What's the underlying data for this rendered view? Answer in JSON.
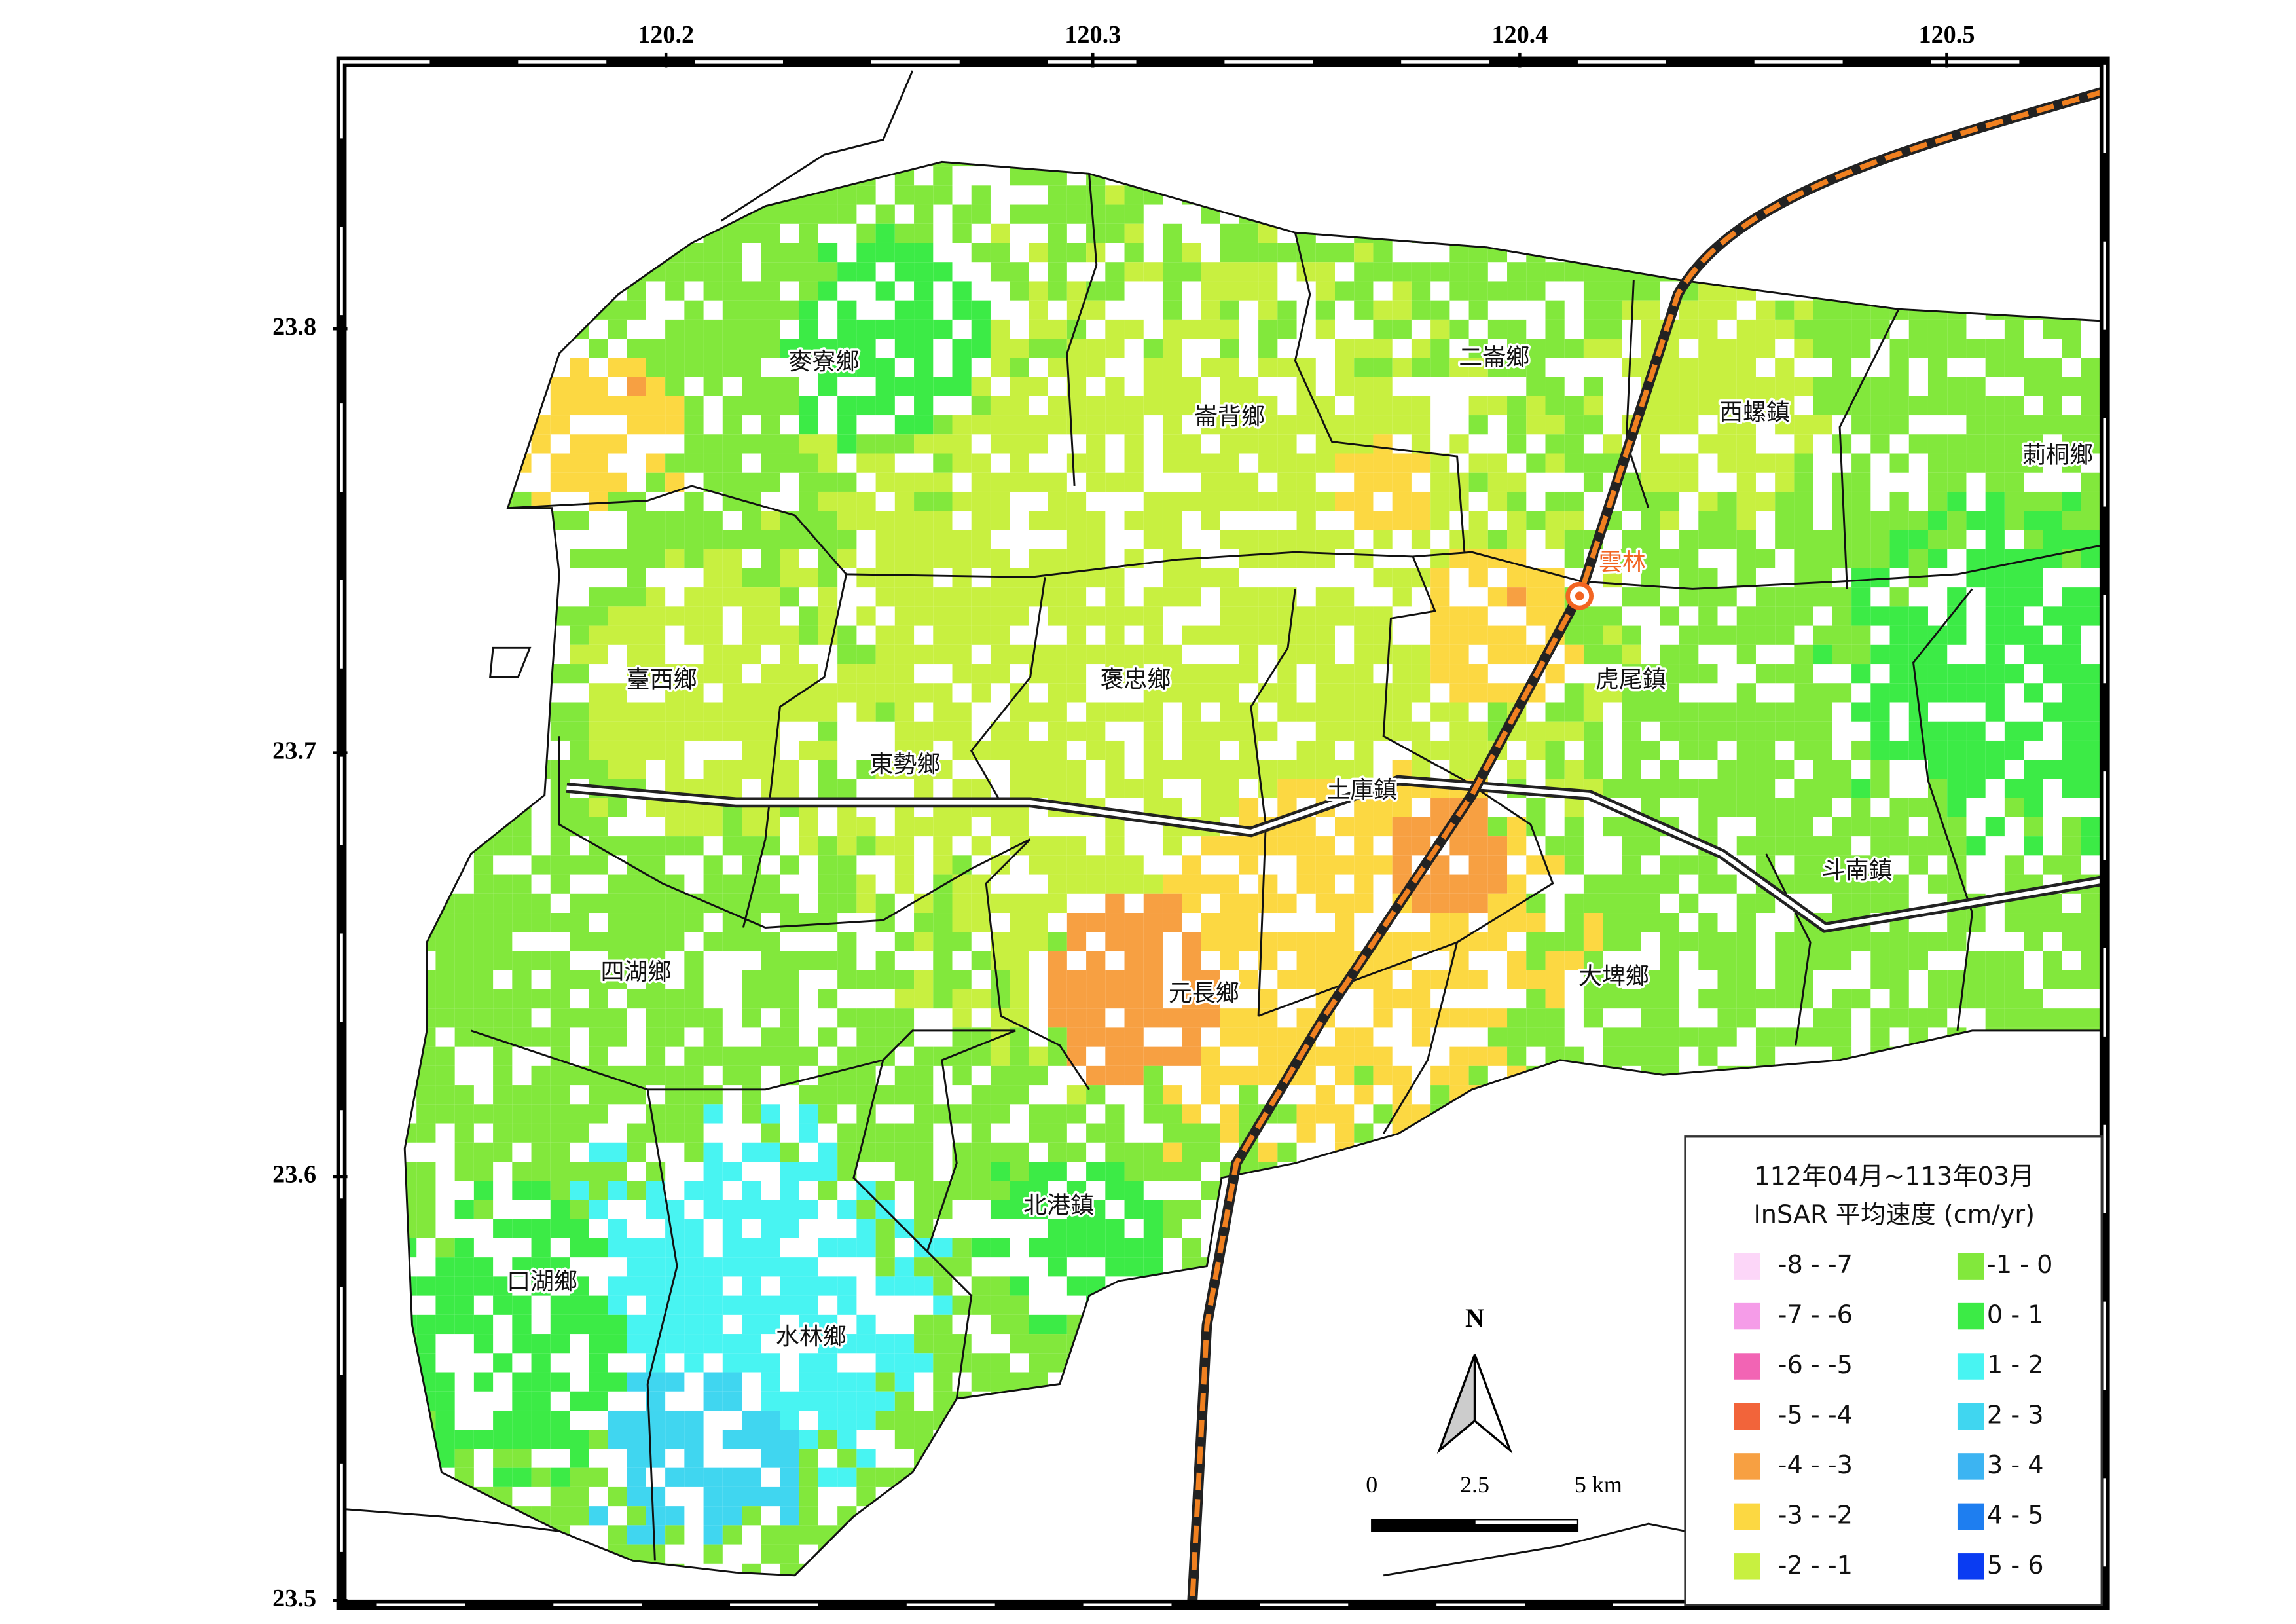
{
  "map": {
    "lon_range": [
      120.124,
      120.537
    ],
    "lat_range": [
      23.499,
      23.863
    ],
    "lon_ticks": [
      120.2,
      120.3,
      120.4,
      120.5
    ],
    "lat_ticks": [
      23.8,
      23.7,
      23.6,
      23.5
    ],
    "townships": [
      {
        "name": "麥寮鄉",
        "lon": 120.237,
        "lat": 23.792
      },
      {
        "name": "崙背鄉",
        "lon": 120.332,
        "lat": 23.779
      },
      {
        "name": "二崙鄉",
        "lon": 120.394,
        "lat": 23.793
      },
      {
        "name": "西螺鎮",
        "lon": 120.455,
        "lat": 23.78
      },
      {
        "name": "莿桐鄉",
        "lon": 120.526,
        "lat": 23.77
      },
      {
        "name": "臺西鄉",
        "lon": 120.199,
        "lat": 23.717
      },
      {
        "name": "褒忠鄉",
        "lon": 120.31,
        "lat": 23.717
      },
      {
        "name": "虎尾鎮",
        "lon": 120.426,
        "lat": 23.717
      },
      {
        "name": "東勢鄉",
        "lon": 120.256,
        "lat": 23.697
      },
      {
        "name": "土庫鎮",
        "lon": 120.363,
        "lat": 23.691
      },
      {
        "name": "斗南鎮",
        "lon": 120.479,
        "lat": 23.672
      },
      {
        "name": "四湖鄉",
        "lon": 120.193,
        "lat": 23.648
      },
      {
        "name": "大埤鄉",
        "lon": 120.422,
        "lat": 23.647
      },
      {
        "name": "元長鄉",
        "lon": 120.326,
        "lat": 23.643
      },
      {
        "name": "北港鎮",
        "lon": 120.292,
        "lat": 23.593
      },
      {
        "name": "口湖鄉",
        "lon": 120.171,
        "lat": 23.575
      },
      {
        "name": "水林鄉",
        "lon": 120.234,
        "lat": 23.562
      }
    ],
    "station": {
      "name": "雲林",
      "lon": 120.414,
      "lat": 23.737,
      "color": "#f26522"
    },
    "legend": {
      "title": [
        "112年04月~113年03月",
        "InSAR 平均速度 (cm/yr)"
      ],
      "classes": [
        {
          "label": "-8 - -7",
          "color": "#fcd6f8"
        },
        {
          "label": "-7 - -6",
          "color": "#f59ce8"
        },
        {
          "label": "-6 - -5",
          "color": "#f264b4"
        },
        {
          "label": "-5 - -4",
          "color": "#f2643a"
        },
        {
          "label": "-4 - -3",
          "color": "#f7a042"
        },
        {
          "label": "-3 - -2",
          "color": "#fcd842"
        },
        {
          "label": "-2 - -1",
          "color": "#c8f040"
        },
        {
          "label": "-1 - 0",
          "color": "#82e83c"
        },
        {
          "label": "0 - 1",
          "color": "#3ceb46"
        },
        {
          "label": "1 - 2",
          "color": "#48f4f2"
        },
        {
          "label": "2 - 3",
          "color": "#40d6f0"
        },
        {
          "label": "3 - 4",
          "color": "#3cb4f2"
        },
        {
          "label": "4 - 5",
          "color": "#1e7ef0"
        },
        {
          "label": "5 - 6",
          "color": "#0a3cf2"
        }
      ]
    },
    "north_label": "N",
    "scale_bar": {
      "labels": [
        "0",
        "2.5",
        "5 km"
      ]
    }
  }
}
